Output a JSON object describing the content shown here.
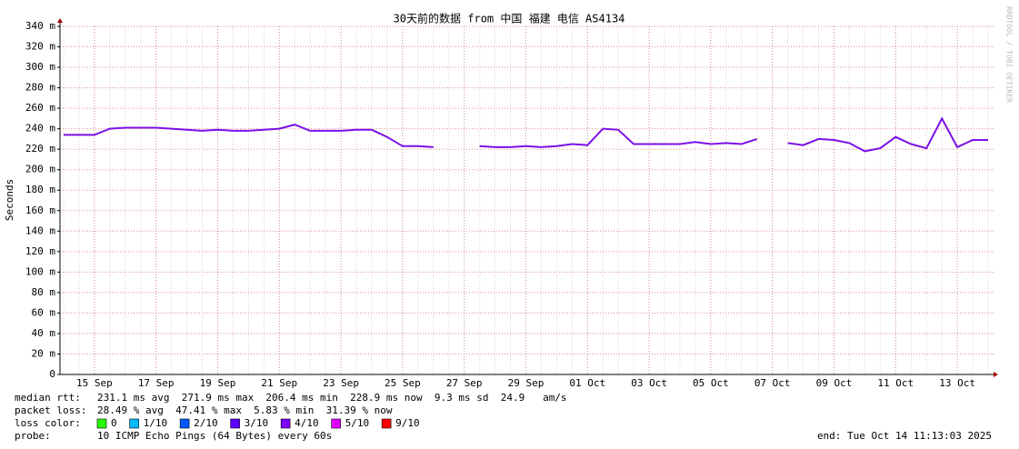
{
  "chart_data": {
    "type": "line",
    "title": "30天前的数据 from 中国 福建 电信 AS4134",
    "y_label": "Seconds",
    "watermark": "RRDTOOL / TOBI OETIKER",
    "categories": [
      null,
      null,
      "15 Sep",
      null,
      null,
      null,
      "17 Sep",
      null,
      null,
      null,
      "19 Sep",
      null,
      null,
      null,
      "21 Sep",
      null,
      null,
      null,
      "23 Sep",
      null,
      null,
      null,
      "25 Sep",
      null,
      null,
      null,
      "27 Sep",
      null,
      null,
      null,
      "29 Sep",
      null,
      null,
      null,
      "01 Oct",
      null,
      null,
      null,
      "03 Oct",
      null,
      null,
      null,
      "05 Oct",
      null,
      null,
      null,
      "07 Oct",
      null,
      null,
      null,
      "09 Oct",
      null,
      null,
      null,
      "11 Oct",
      null,
      null,
      null,
      "13 Oct",
      null,
      null
    ],
    "series": [
      {
        "name": "median rtt",
        "color": "#7a10e8",
        "values": [
          0.234,
          0.234,
          0.234,
          0.24,
          0.241,
          0.241,
          0.241,
          0.24,
          0.239,
          0.238,
          0.239,
          0.238,
          0.238,
          0.239,
          0.24,
          0.244,
          0.238,
          0.238,
          0.238,
          0.239,
          0.239,
          0.232,
          0.223,
          0.223,
          0.222,
          null,
          null,
          0.223,
          0.222,
          0.222,
          0.223,
          0.222,
          0.223,
          0.225,
          0.224,
          0.24,
          0.239,
          0.225,
          0.225,
          0.225,
          0.225,
          0.227,
          0.225,
          0.226,
          0.225,
          0.23,
          null,
          0.226,
          0.224,
          0.23,
          0.229,
          0.226,
          0.218,
          0.221,
          0.232,
          0.225,
          0.221,
          0.25,
          0.222,
          0.229,
          0.229
        ]
      }
    ],
    "ylim": [
      0,
      0.34
    ],
    "yticks": [
      0,
      {
        "value": 0.02,
        "label": "20 m"
      },
      {
        "value": 0.04,
        "label": "40 m"
      },
      {
        "value": 0.06,
        "label": "60 m"
      },
      {
        "value": 0.08,
        "label": "80 m"
      },
      {
        "value": 0.1,
        "label": "100 m"
      },
      {
        "value": 0.12,
        "label": "120 m"
      },
      {
        "value": 0.14,
        "label": "140 m"
      },
      {
        "value": 0.16,
        "label": "160 m"
      },
      {
        "value": 0.18,
        "label": "180 m"
      },
      {
        "value": 0.2,
        "label": "200 m"
      },
      {
        "value": 0.22,
        "label": "220 m"
      },
      {
        "value": 0.24,
        "label": "240 m"
      },
      {
        "value": 0.26,
        "label": "260 m"
      },
      {
        "value": 0.28,
        "label": "280 m"
      },
      {
        "value": 0.3,
        "label": "300 m"
      },
      {
        "value": 0.32,
        "label": "320 m"
      },
      {
        "value": 0.34,
        "label": "340 m"
      }
    ],
    "grid": true,
    "footer": {
      "median_label": "median rtt:",
      "median_text": "231.1 ms avg  271.9 ms max  206.4 ms min  228.9 ms now  9.3 ms sd  24.9   am/s",
      "loss_label": "packet loss:",
      "loss_text": "28.49 % avg  47.41 % max  5.83 % min  31.39 % now",
      "color_label": "loss color:",
      "loss_colors": [
        {
          "name": "0",
          "color": "#26ff00"
        },
        {
          "name": "1/10",
          "color": "#00b8ff"
        },
        {
          "name": "2/10",
          "color": "#0059ff"
        },
        {
          "name": "3/10",
          "color": "#5e00ff"
        },
        {
          "name": "4/10",
          "color": "#7e00ff"
        },
        {
          "name": "5/10",
          "color": "#dd00ff"
        },
        {
          "name": "9/10",
          "color": "#ff0000"
        }
      ],
      "probe_label": "probe:",
      "probe_text": "10 ICMP Echo Pings (64 Bytes) every 60s",
      "end_text": "end: Tue Oct 14 11:13:03 2025"
    }
  }
}
